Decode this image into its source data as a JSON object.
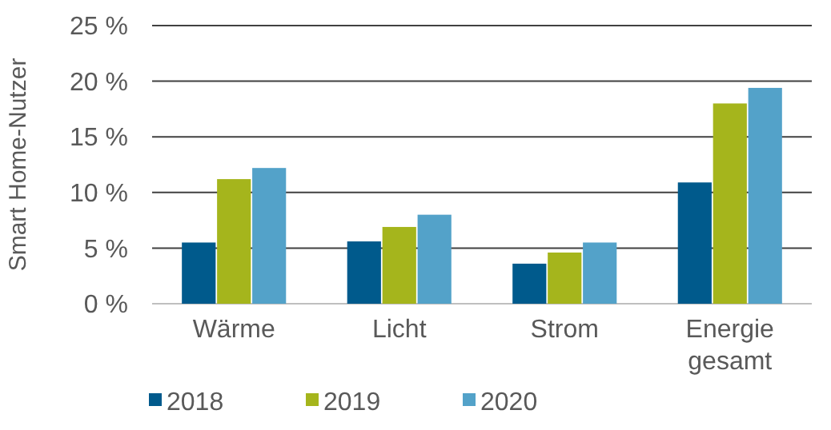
{
  "chart_data": {
    "type": "bar",
    "ylabel": "Smart Home-Nutzer",
    "categories": [
      "Wärme",
      "Licht",
      "Strom",
      "Energie gesamt"
    ],
    "series": [
      {
        "name": "2018",
        "color": "#005a8c",
        "values": [
          5.5,
          5.6,
          3.6,
          10.9
        ]
      },
      {
        "name": "2019",
        "color": "#a5b51c",
        "values": [
          11.2,
          6.9,
          4.6,
          18.0
        ]
      },
      {
        "name": "2020",
        "color": "#53a2c9",
        "values": [
          12.2,
          8.0,
          5.5,
          19.4
        ]
      }
    ],
    "ylim": [
      0,
      25
    ],
    "yticks": [
      {
        "value": 0,
        "label": "0 %"
      },
      {
        "value": 5,
        "label": "5 %"
      },
      {
        "value": 10,
        "label": "10 %"
      },
      {
        "value": 15,
        "label": "15 %"
      },
      {
        "value": 20,
        "label": "20 %"
      },
      {
        "value": 25,
        "label": "25 %"
      }
    ],
    "grid": "y",
    "legend": "bottom left"
  }
}
